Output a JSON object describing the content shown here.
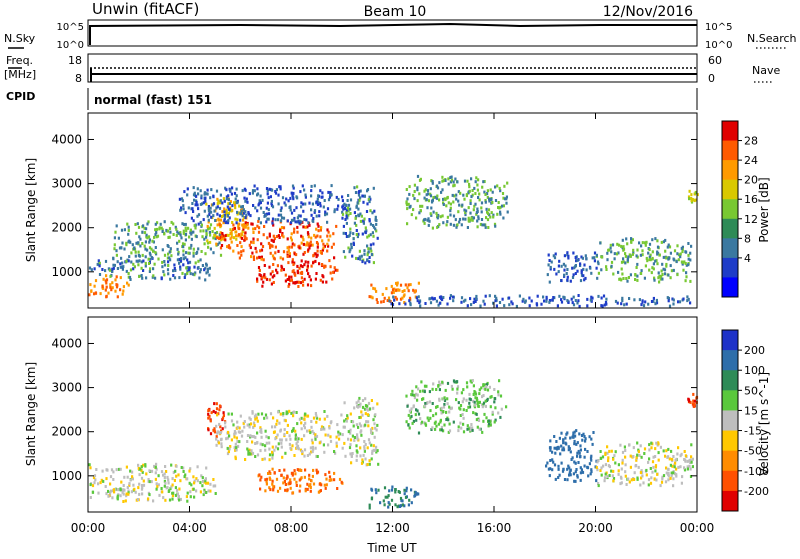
{
  "header": {
    "station": "Unwin (fitACF)",
    "beam": "Beam 10",
    "date": "12/Nov/2016"
  },
  "top_panels": {
    "nsky_label": "N.Sky",
    "nsky_ticks": [
      "10^5",
      "10^0"
    ],
    "nsearch_label": "N.Search",
    "nsearch_ticks": [
      "10^5",
      "10^0"
    ],
    "freq_label_line1": "Freq.",
    "freq_label_line2": "[MHz]",
    "freq_ticks": [
      "18",
      "8"
    ],
    "nave_label": "Nave",
    "nave_ticks": [
      "60",
      "0"
    ],
    "cpid_label": "CPID",
    "cpid_text": "normal (fast) 151"
  },
  "axes": {
    "ylabel": "Slant Range [km]",
    "yticks": [
      "4000",
      "3000",
      "2000",
      "1000"
    ],
    "xticks": [
      "00:00",
      "04:00",
      "08:00",
      "12:00",
      "16:00",
      "20:00",
      "00:00"
    ],
    "xlabel": "Time UT"
  },
  "power_scale": {
    "label": "Power [dB]",
    "ticks": [
      "28",
      "24",
      "20",
      "16",
      "12",
      "8",
      "4"
    ],
    "colors": [
      "#e00000",
      "#ff5a00",
      "#ff9a00",
      "#d9c800",
      "#78c832",
      "#2e8b57",
      "#3a78a0",
      "#1e3cc8",
      "#0000ff"
    ]
  },
  "velocity_scale": {
    "label": "Velocity [m s^-1]",
    "ticks": [
      "200",
      "100",
      "50",
      "15",
      "-15",
      "-50",
      "-100",
      "-200"
    ],
    "colors": [
      "#1e32c8",
      "#2e6eaa",
      "#2e8b57",
      "#5ac83c",
      "#bebebe",
      "#ffc800",
      "#ff8c00",
      "#ff5000",
      "#e00000"
    ]
  },
  "chart_data": [
    {
      "type": "heatmap",
      "title": "Power",
      "xlabel": "Time UT",
      "ylabel": "Slant Range [km]",
      "x_range_hours": [
        0,
        24
      ],
      "y_range_km": [
        180,
        4600
      ],
      "colorbar_label": "Power [dB]",
      "colorbar_range": [
        0,
        30
      ],
      "echo_regions": [
        {
          "t0": 0.0,
          "t1": 1.6,
          "r0": 450,
          "r1": 950,
          "value": 24
        },
        {
          "t0": 0.0,
          "t1": 4.8,
          "r0": 850,
          "r1": 1400,
          "value": 10
        },
        {
          "t0": 1.0,
          "t1": 5.2,
          "r0": 1300,
          "r1": 2200,
          "value": 12
        },
        {
          "t0": 4.6,
          "t1": 6.2,
          "r0": 1700,
          "r1": 2700,
          "value": 20
        },
        {
          "t0": 5.0,
          "t1": 9.8,
          "r0": 1300,
          "r1": 2200,
          "value": 26
        },
        {
          "t0": 6.5,
          "t1": 9.8,
          "r0": 700,
          "r1": 1300,
          "value": 28
        },
        {
          "t0": 3.5,
          "t1": 10.2,
          "r0": 2100,
          "r1": 3000,
          "value": 8
        },
        {
          "t0": 10.0,
          "t1": 11.4,
          "r0": 1200,
          "r1": 3000,
          "value": 10
        },
        {
          "t0": 11.0,
          "t1": 13.0,
          "r0": 300,
          "r1": 800,
          "value": 24
        },
        {
          "t0": 12.5,
          "t1": 16.5,
          "r0": 2000,
          "r1": 3200,
          "value": 12
        },
        {
          "t0": 11.8,
          "t1": 24.0,
          "r0": 250,
          "r1": 500,
          "value": 8
        },
        {
          "t0": 18.0,
          "t1": 20.0,
          "r0": 800,
          "r1": 1500,
          "value": 8
        },
        {
          "t0": 20.0,
          "t1": 23.8,
          "r0": 800,
          "r1": 1800,
          "value": 12
        },
        {
          "t0": 23.6,
          "t1": 24.0,
          "r0": 2600,
          "r1": 2900,
          "value": 16
        }
      ]
    },
    {
      "type": "heatmap",
      "title": "Velocity",
      "xlabel": "Time UT",
      "ylabel": "Slant Range [km]",
      "x_range_hours": [
        0,
        24
      ],
      "y_range_km": [
        180,
        4600
      ],
      "colorbar_label": "Velocity [m s^-1]",
      "colorbar_range": [
        -250,
        250
      ],
      "echo_regions": [
        {
          "t0": 0.0,
          "t1": 5.0,
          "r0": 450,
          "r1": 1300,
          "value": 0
        },
        {
          "t0": 4.6,
          "t1": 5.4,
          "r0": 1900,
          "r1": 2700,
          "value": -200
        },
        {
          "t0": 5.0,
          "t1": 10.0,
          "r0": 1400,
          "r1": 2500,
          "value": 0
        },
        {
          "t0": 6.5,
          "t1": 10.0,
          "r0": 600,
          "r1": 1200,
          "value": -100
        },
        {
          "t0": 10.0,
          "t1": 11.4,
          "r0": 1200,
          "r1": 2800,
          "value": 0
        },
        {
          "t0": 11.0,
          "t1": 13.0,
          "r0": 300,
          "r1": 800,
          "value": 100
        },
        {
          "t0": 12.5,
          "t1": 16.5,
          "r0": 2000,
          "r1": 3200,
          "value": 30
        },
        {
          "t0": 18.0,
          "t1": 20.0,
          "r0": 900,
          "r1": 2100,
          "value": 150
        },
        {
          "t0": 20.0,
          "t1": 23.8,
          "r0": 800,
          "r1": 1800,
          "value": 0
        },
        {
          "t0": 23.6,
          "t1": 24.0,
          "r0": 2600,
          "r1": 2900,
          "value": -200
        }
      ]
    }
  ]
}
